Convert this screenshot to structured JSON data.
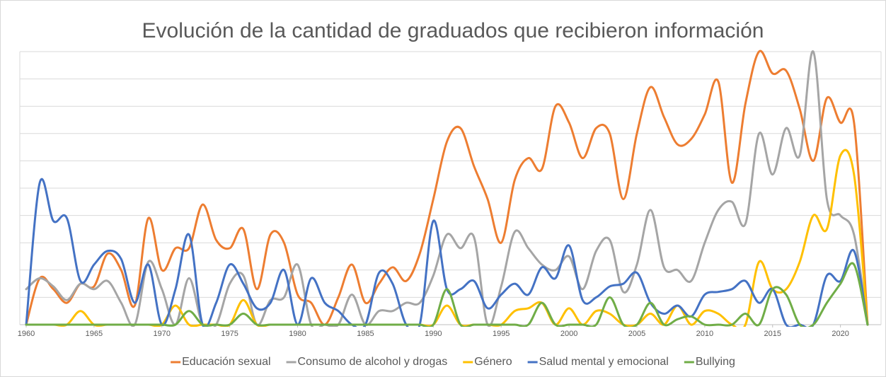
{
  "chart_data": {
    "type": "line",
    "title": "Evolución de la cantidad de graduados que recibieron información",
    "x": [
      1960,
      1961,
      1962,
      1963,
      1964,
      1965,
      1966,
      1967,
      1968,
      1969,
      1970,
      1971,
      1972,
      1973,
      1974,
      1975,
      1976,
      1977,
      1978,
      1979,
      1980,
      1981,
      1982,
      1983,
      1984,
      1985,
      1986,
      1987,
      1988,
      1989,
      1990,
      1991,
      1992,
      1993,
      1994,
      1995,
      1996,
      1997,
      1998,
      1999,
      2000,
      2001,
      2002,
      2003,
      2004,
      2005,
      2006,
      2007,
      2008,
      2009,
      2010,
      2011,
      2012,
      2013,
      2014,
      2015,
      2016,
      2017,
      2018,
      2019,
      2020,
      2021,
      2022
    ],
    "xlim": [
      1960,
      2022
    ],
    "xticks": [
      1960,
      1965,
      1970,
      1975,
      1980,
      1985,
      1990,
      1995,
      2000,
      2005,
      2010,
      2015,
      2020
    ],
    "ylim": [
      0,
      10
    ],
    "yticks": [
      0,
      1,
      2,
      3,
      4,
      5,
      6,
      7,
      8,
      9,
      10
    ],
    "grid": true,
    "smooth": true,
    "legend": "bottom",
    "series": [
      {
        "name": "Educación sexual",
        "color": "#ed7d31",
        "values": [
          0,
          1.7,
          1.3,
          0.8,
          1.5,
          1.4,
          2.6,
          2.0,
          0.7,
          3.9,
          2.0,
          2.8,
          2.8,
          4.4,
          3.1,
          2.8,
          3.5,
          1.3,
          3.3,
          3.0,
          1.1,
          0.8,
          0,
          1.0,
          2.2,
          0.8,
          1.5,
          2.1,
          1.6,
          2.6,
          4.6,
          6.7,
          7.2,
          5.8,
          4.6,
          3.0,
          5.3,
          6.1,
          5.7,
          8.0,
          7.4,
          6.1,
          7.2,
          7.0,
          4.6,
          7.0,
          8.7,
          7.6,
          6.6,
          6.8,
          7.7,
          8.9,
          5.2,
          8.1,
          10.0,
          9.2,
          9.3,
          7.9,
          6.0,
          8.3,
          7.4,
          7.4,
          0
        ]
      },
      {
        "name": "Consumo de alcohol y drogas",
        "color": "#a5a5a5",
        "values": [
          1.3,
          1.7,
          1.4,
          0.9,
          1.5,
          1.3,
          1.6,
          0.8,
          0,
          2.3,
          1.3,
          0,
          1.7,
          0,
          0,
          1.5,
          1.8,
          0,
          0.9,
          1.0,
          2.2,
          0,
          0,
          0,
          1.1,
          0,
          0.5,
          0.5,
          0.8,
          0.8,
          1.8,
          3.3,
          2.8,
          3.2,
          0,
          1.4,
          3.4,
          2.8,
          2.2,
          2.0,
          2.5,
          1.3,
          2.7,
          3.1,
          1.2,
          2.2,
          4.2,
          2.1,
          2.0,
          1.6,
          3.0,
          4.2,
          4.5,
          3.7,
          7.0,
          5.5,
          7.2,
          6.2,
          10.0,
          4.6,
          4.0,
          3.3,
          0
        ]
      },
      {
        "name": "Género",
        "color": "#ffc000",
        "values": [
          0,
          0,
          0,
          0,
          0.5,
          0,
          0,
          0,
          0,
          0,
          0,
          0.7,
          0,
          0,
          0,
          0,
          0.9,
          0,
          0,
          0,
          0,
          0,
          0,
          0,
          0,
          0,
          0,
          0,
          0,
          0,
          0,
          0.7,
          0,
          0,
          0,
          0,
          0.5,
          0.6,
          0.8,
          0,
          0.6,
          0,
          0.5,
          0.4,
          0,
          0,
          0.4,
          0,
          0.7,
          0,
          0.5,
          0.4,
          0,
          0,
          2.3,
          1.3,
          1.3,
          2.3,
          4.0,
          3.5,
          6.2,
          5.5,
          0
        ]
      },
      {
        "name": "Salud mental y emocional",
        "color": "#4472c4",
        "values": [
          0,
          5.2,
          3.8,
          3.9,
          1.6,
          2.2,
          2.7,
          2.4,
          0.8,
          2.2,
          0,
          1.3,
          3.3,
          0,
          0.8,
          2.2,
          1.5,
          0.6,
          0.8,
          2.0,
          0,
          1.7,
          0.8,
          0.5,
          0,
          0,
          1.9,
          1.5,
          0,
          0,
          3.8,
          1.3,
          1.3,
          1.6,
          0.6,
          1.1,
          1.5,
          1.1,
          2.1,
          1.7,
          2.9,
          0.9,
          1.0,
          1.4,
          1.5,
          1.9,
          0.8,
          0.4,
          0.7,
          0.3,
          1.1,
          1.2,
          1.3,
          1.6,
          0.8,
          1.3,
          0,
          0,
          0,
          1.8,
          1.6,
          2.7,
          0
        ]
      },
      {
        "name": "Bullying",
        "color": "#70ad47",
        "values": [
          0,
          0,
          0,
          0,
          0,
          0,
          0,
          0,
          0,
          0,
          0,
          0,
          0.5,
          0,
          0,
          0,
          0.4,
          0,
          0,
          0,
          0,
          0,
          0,
          0,
          0,
          0,
          0,
          0,
          0,
          0,
          0,
          1.3,
          0,
          0,
          0,
          0,
          0,
          0,
          0.8,
          0,
          0,
          0,
          0,
          1.0,
          0,
          0,
          0.8,
          0,
          0.2,
          0.3,
          0,
          0,
          0,
          0.4,
          0,
          1.3,
          1.1,
          0,
          0,
          0.8,
          1.5,
          2.2,
          0
        ]
      }
    ]
  }
}
